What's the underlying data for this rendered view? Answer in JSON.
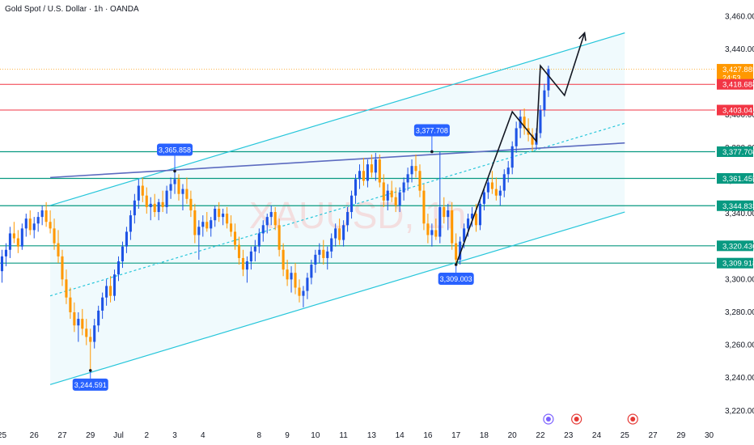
{
  "chart_data": {
    "type": "candlestick",
    "title": "Gold Spot / U.S. Dollar · 1h · OANDA",
    "watermark": "XAUUSD, 1h",
    "ylim": [
      3215,
      3470
    ],
    "y_ticks": [
      "3,460.000",
      "3,440.000",
      "3,420.000",
      "3,400.000",
      "3,380.000",
      "3,360.000",
      "3,340.000",
      "3,320.000",
      "3,300.000",
      "3,280.000",
      "3,260.000",
      "3,240.000",
      "3,220.000"
    ],
    "y_tick_values": [
      3460,
      3440,
      3420,
      3400,
      3380,
      3360,
      3340,
      3320,
      3300,
      3280,
      3260,
      3240,
      3220
    ],
    "x_ticks": [
      "25",
      "26",
      "27",
      "29",
      "Jul",
      "2",
      "3",
      "4",
      "8",
      "9",
      "10",
      "11",
      "13",
      "14",
      "16",
      "17",
      "18",
      "20",
      "22",
      "23",
      "24",
      "25",
      "27",
      "29",
      "30"
    ],
    "x_tick_index": [
      0,
      8,
      15,
      22,
      29,
      36,
      43,
      50,
      64,
      71,
      78,
      85,
      92,
      99,
      106,
      113,
      120,
      127,
      134,
      141,
      148,
      155,
      162,
      169,
      176
    ],
    "total_slots": 178,
    "countdown": "24:53",
    "horizontal_levels": [
      {
        "value": 3427.885,
        "label": "3,427.885",
        "color": "#ff9800",
        "kind": "current"
      },
      {
        "value": 3418.688,
        "label": "3,418.688",
        "color": "#f23645"
      },
      {
        "value": 3403.041,
        "label": "3,403.041",
        "color": "#f23645"
      },
      {
        "value": 3377.708,
        "label": "3,377.708",
        "color": "#089981"
      },
      {
        "value": 3361.455,
        "label": "3,361.455",
        "color": "#089981"
      },
      {
        "value": 3344.833,
        "label": "3,344.833",
        "color": "#089981"
      },
      {
        "value": 3320.436,
        "label": "3,320.436",
        "color": "#089981"
      },
      {
        "value": 3309.918,
        "label": "3,309.918",
        "color": "#089981"
      }
    ],
    "callouts": [
      {
        "label": "3,365.858",
        "slot": 43,
        "value": 3365.858,
        "position": "above"
      },
      {
        "label": "3,377.708",
        "slot": 107,
        "value": 3377.708,
        "position": "above"
      },
      {
        "label": "3,309.003",
        "slot": 113,
        "value": 3309.003,
        "position": "below"
      },
      {
        "label": "3,244.591",
        "slot": 22,
        "value": 3244.591,
        "position": "below"
      }
    ],
    "channel": {
      "upper": [
        [
          12,
          3345
        ],
        [
          155,
          3450
        ]
      ],
      "lower": [
        [
          12,
          3236
        ],
        [
          155,
          3341
        ]
      ],
      "mid": [
        [
          12,
          3290
        ],
        [
          155,
          3395
        ]
      ]
    },
    "trendline": [
      [
        12,
        3362
      ],
      [
        155,
        3383
      ]
    ],
    "projection": [
      [
        113,
        3309
      ],
      [
        127,
        3402
      ],
      [
        133,
        3384
      ],
      [
        134,
        3430
      ],
      [
        140,
        3412
      ],
      [
        145,
        3450
      ]
    ],
    "candles": [
      {
        "o": 3305,
        "h": 3318,
        "l": 3298,
        "c": 3314
      },
      {
        "o": 3314,
        "h": 3322,
        "l": 3308,
        "c": 3318
      },
      {
        "o": 3318,
        "h": 3332,
        "l": 3313,
        "c": 3328
      },
      {
        "o": 3328,
        "h": 3335,
        "l": 3322,
        "c": 3325
      },
      {
        "o": 3325,
        "h": 3330,
        "l": 3316,
        "c": 3320
      },
      {
        "o": 3320,
        "h": 3334,
        "l": 3318,
        "c": 3331
      },
      {
        "o": 3331,
        "h": 3340,
        "l": 3326,
        "c": 3337
      },
      {
        "o": 3337,
        "h": 3342,
        "l": 3327,
        "c": 3330
      },
      {
        "o": 3330,
        "h": 3338,
        "l": 3325,
        "c": 3334
      },
      {
        "o": 3334,
        "h": 3341,
        "l": 3329,
        "c": 3338
      },
      {
        "o": 3338,
        "h": 3345,
        "l": 3333,
        "c": 3342
      },
      {
        "o": 3342,
        "h": 3347,
        "l": 3332,
        "c": 3335
      },
      {
        "o": 3335,
        "h": 3342,
        "l": 3328,
        "c": 3331
      },
      {
        "o": 3331,
        "h": 3337,
        "l": 3318,
        "c": 3322
      },
      {
        "o": 3322,
        "h": 3330,
        "l": 3310,
        "c": 3314
      },
      {
        "o": 3314,
        "h": 3318,
        "l": 3296,
        "c": 3300
      },
      {
        "o": 3300,
        "h": 3306,
        "l": 3285,
        "c": 3289
      },
      {
        "o": 3289,
        "h": 3295,
        "l": 3276,
        "c": 3280
      },
      {
        "o": 3280,
        "h": 3286,
        "l": 3268,
        "c": 3272
      },
      {
        "o": 3272,
        "h": 3280,
        "l": 3262,
        "c": 3276
      },
      {
        "o": 3276,
        "h": 3282,
        "l": 3266,
        "c": 3270
      },
      {
        "o": 3270,
        "h": 3276,
        "l": 3260,
        "c": 3265
      },
      {
        "o": 3265,
        "h": 3270,
        "l": 3244.6,
        "c": 3262
      },
      {
        "o": 3262,
        "h": 3276,
        "l": 3258,
        "c": 3272
      },
      {
        "o": 3272,
        "h": 3284,
        "l": 3268,
        "c": 3281
      },
      {
        "o": 3281,
        "h": 3292,
        "l": 3276,
        "c": 3289
      },
      {
        "o": 3289,
        "h": 3300,
        "l": 3284,
        "c": 3296
      },
      {
        "o": 3296,
        "h": 3302,
        "l": 3286,
        "c": 3290
      },
      {
        "o": 3290,
        "h": 3306,
        "l": 3287,
        "c": 3303
      },
      {
        "o": 3303,
        "h": 3314,
        "l": 3299,
        "c": 3311
      },
      {
        "o": 3311,
        "h": 3323,
        "l": 3307,
        "c": 3320
      },
      {
        "o": 3320,
        "h": 3332,
        "l": 3316,
        "c": 3329
      },
      {
        "o": 3329,
        "h": 3342,
        "l": 3324,
        "c": 3339
      },
      {
        "o": 3339,
        "h": 3352,
        "l": 3334,
        "c": 3348
      },
      {
        "o": 3348,
        "h": 3361,
        "l": 3343,
        "c": 3357
      },
      {
        "o": 3357,
        "h": 3362,
        "l": 3347,
        "c": 3351
      },
      {
        "o": 3351,
        "h": 3356,
        "l": 3340,
        "c": 3344
      },
      {
        "o": 3344,
        "h": 3350,
        "l": 3336,
        "c": 3346
      },
      {
        "o": 3346,
        "h": 3352,
        "l": 3338,
        "c": 3341
      },
      {
        "o": 3341,
        "h": 3349,
        "l": 3336,
        "c": 3347
      },
      {
        "o": 3347,
        "h": 3354,
        "l": 3341,
        "c": 3344
      },
      {
        "o": 3344,
        "h": 3357,
        "l": 3340,
        "c": 3354
      },
      {
        "o": 3354,
        "h": 3362,
        "l": 3349,
        "c": 3358
      },
      {
        "o": 3358,
        "h": 3365.9,
        "l": 3352,
        "c": 3361
      },
      {
        "o": 3361,
        "h": 3364,
        "l": 3348,
        "c": 3352
      },
      {
        "o": 3352,
        "h": 3358,
        "l": 3342,
        "c": 3355
      },
      {
        "o": 3355,
        "h": 3362,
        "l": 3346,
        "c": 3349
      },
      {
        "o": 3349,
        "h": 3354,
        "l": 3338,
        "c": 3342
      },
      {
        "o": 3342,
        "h": 3346,
        "l": 3322,
        "c": 3327
      },
      {
        "o": 3327,
        "h": 3336,
        "l": 3312,
        "c": 3332
      },
      {
        "o": 3332,
        "h": 3339,
        "l": 3326,
        "c": 3335
      },
      {
        "o": 3335,
        "h": 3341,
        "l": 3329,
        "c": 3331
      },
      {
        "o": 3331,
        "h": 3338,
        "l": 3326,
        "c": 3336
      },
      {
        "o": 3336,
        "h": 3345,
        "l": 3332,
        "c": 3343
      },
      {
        "o": 3343,
        "h": 3347,
        "l": 3335,
        "c": 3338
      },
      {
        "o": 3338,
        "h": 3343,
        "l": 3333,
        "c": 3340
      },
      {
        "o": 3340,
        "h": 3344,
        "l": 3331,
        "c": 3334
      },
      {
        "o": 3334,
        "h": 3339,
        "l": 3326,
        "c": 3329
      },
      {
        "o": 3329,
        "h": 3334,
        "l": 3318,
        "c": 3321
      },
      {
        "o": 3321,
        "h": 3326,
        "l": 3309,
        "c": 3313
      },
      {
        "o": 3313,
        "h": 3318,
        "l": 3302,
        "c": 3306
      },
      {
        "o": 3306,
        "h": 3314,
        "l": 3298,
        "c": 3311
      },
      {
        "o": 3311,
        "h": 3320,
        "l": 3306,
        "c": 3317
      },
      {
        "o": 3317,
        "h": 3324,
        "l": 3311,
        "c": 3320
      },
      {
        "o": 3320,
        "h": 3331,
        "l": 3316,
        "c": 3328
      },
      {
        "o": 3328,
        "h": 3336,
        "l": 3323,
        "c": 3333
      },
      {
        "o": 3333,
        "h": 3340,
        "l": 3328,
        "c": 3338
      },
      {
        "o": 3338,
        "h": 3345,
        "l": 3333,
        "c": 3341
      },
      {
        "o": 3341,
        "h": 3344,
        "l": 3330,
        "c": 3333
      },
      {
        "o": 3333,
        "h": 3337,
        "l": 3314,
        "c": 3318
      },
      {
        "o": 3318,
        "h": 3322,
        "l": 3302,
        "c": 3306
      },
      {
        "o": 3306,
        "h": 3312,
        "l": 3296,
        "c": 3300
      },
      {
        "o": 3300,
        "h": 3308,
        "l": 3292,
        "c": 3304
      },
      {
        "o": 3304,
        "h": 3310,
        "l": 3291,
        "c": 3295
      },
      {
        "o": 3295,
        "h": 3300,
        "l": 3286,
        "c": 3290
      },
      {
        "o": 3290,
        "h": 3296,
        "l": 3283,
        "c": 3293
      },
      {
        "o": 3293,
        "h": 3304,
        "l": 3288,
        "c": 3301
      },
      {
        "o": 3301,
        "h": 3312,
        "l": 3297,
        "c": 3309
      },
      {
        "o": 3309,
        "h": 3318,
        "l": 3304,
        "c": 3315
      },
      {
        "o": 3315,
        "h": 3322,
        "l": 3310,
        "c": 3318
      },
      {
        "o": 3318,
        "h": 3324,
        "l": 3309,
        "c": 3313
      },
      {
        "o": 3313,
        "h": 3320,
        "l": 3306,
        "c": 3317
      },
      {
        "o": 3317,
        "h": 3328,
        "l": 3313,
        "c": 3325
      },
      {
        "o": 3325,
        "h": 3334,
        "l": 3320,
        "c": 3331
      },
      {
        "o": 3331,
        "h": 3337,
        "l": 3321,
        "c": 3324
      },
      {
        "o": 3324,
        "h": 3336,
        "l": 3320,
        "c": 3333
      },
      {
        "o": 3333,
        "h": 3344,
        "l": 3329,
        "c": 3341
      },
      {
        "o": 3341,
        "h": 3354,
        "l": 3337,
        "c": 3351
      },
      {
        "o": 3351,
        "h": 3364,
        "l": 3346,
        "c": 3361
      },
      {
        "o": 3361,
        "h": 3370,
        "l": 3355,
        "c": 3366
      },
      {
        "o": 3366,
        "h": 3374,
        "l": 3357,
        "c": 3360
      },
      {
        "o": 3360,
        "h": 3373,
        "l": 3356,
        "c": 3370
      },
      {
        "o": 3370,
        "h": 3376,
        "l": 3362,
        "c": 3365
      },
      {
        "o": 3365,
        "h": 3377,
        "l": 3360,
        "c": 3373
      },
      {
        "o": 3373,
        "h": 3376,
        "l": 3356,
        "c": 3359
      },
      {
        "o": 3359,
        "h": 3364,
        "l": 3344,
        "c": 3348
      },
      {
        "o": 3348,
        "h": 3358,
        "l": 3342,
        "c": 3354
      },
      {
        "o": 3354,
        "h": 3360,
        "l": 3347,
        "c": 3350
      },
      {
        "o": 3350,
        "h": 3356,
        "l": 3341,
        "c": 3345
      },
      {
        "o": 3345,
        "h": 3356,
        "l": 3341,
        "c": 3353
      },
      {
        "o": 3353,
        "h": 3362,
        "l": 3348,
        "c": 3359
      },
      {
        "o": 3359,
        "h": 3368,
        "l": 3354,
        "c": 3364
      },
      {
        "o": 3364,
        "h": 3373,
        "l": 3359,
        "c": 3369
      },
      {
        "o": 3369,
        "h": 3376,
        "l": 3362,
        "c": 3366
      },
      {
        "o": 3366,
        "h": 3370,
        "l": 3350,
        "c": 3354
      },
      {
        "o": 3354,
        "h": 3358,
        "l": 3330,
        "c": 3334
      },
      {
        "o": 3334,
        "h": 3340,
        "l": 3322,
        "c": 3327
      },
      {
        "o": 3327,
        "h": 3334,
        "l": 3320,
        "c": 3330
      },
      {
        "o": 3330,
        "h": 3337,
        "l": 3324,
        "c": 3326
      },
      {
        "o": 3326,
        "h": 3377.7,
        "l": 3322,
        "c": 3344
      },
      {
        "o": 3344,
        "h": 3350,
        "l": 3334,
        "c": 3338
      },
      {
        "o": 3338,
        "h": 3346,
        "l": 3330,
        "c": 3342
      },
      {
        "o": 3342,
        "h": 3347,
        "l": 3318,
        "c": 3322
      },
      {
        "o": 3322,
        "h": 3328,
        "l": 3309,
        "c": 3312
      },
      {
        "o": 3312,
        "h": 3326,
        "l": 3309,
        "c": 3323
      },
      {
        "o": 3323,
        "h": 3334,
        "l": 3319,
        "c": 3331
      },
      {
        "o": 3331,
        "h": 3340,
        "l": 3326,
        "c": 3337
      },
      {
        "o": 3337,
        "h": 3344,
        "l": 3332,
        "c": 3340
      },
      {
        "o": 3340,
        "h": 3346,
        "l": 3329,
        "c": 3333
      },
      {
        "o": 3333,
        "h": 3349,
        "l": 3330,
        "c": 3346
      },
      {
        "o": 3346,
        "h": 3356,
        "l": 3342,
        "c": 3353
      },
      {
        "o": 3353,
        "h": 3362,
        "l": 3349,
        "c": 3359
      },
      {
        "o": 3359,
        "h": 3366,
        "l": 3352,
        "c": 3355
      },
      {
        "o": 3355,
        "h": 3362,
        "l": 3348,
        "c": 3351
      },
      {
        "o": 3351,
        "h": 3357,
        "l": 3345,
        "c": 3354
      },
      {
        "o": 3354,
        "h": 3367,
        "l": 3350,
        "c": 3364
      },
      {
        "o": 3364,
        "h": 3372,
        "l": 3359,
        "c": 3368
      },
      {
        "o": 3368,
        "h": 3384,
        "l": 3364,
        "c": 3381
      },
      {
        "o": 3381,
        "h": 3396,
        "l": 3377,
        "c": 3392
      },
      {
        "o": 3392,
        "h": 3403,
        "l": 3386,
        "c": 3399
      },
      {
        "o": 3399,
        "h": 3404,
        "l": 3388,
        "c": 3392
      },
      {
        "o": 3392,
        "h": 3398,
        "l": 3384,
        "c": 3388
      },
      {
        "o": 3388,
        "h": 3392,
        "l": 3378,
        "c": 3382
      },
      {
        "o": 3382,
        "h": 3392,
        "l": 3379,
        "c": 3389
      },
      {
        "o": 3389,
        "h": 3406,
        "l": 3386,
        "c": 3403
      },
      {
        "o": 3403,
        "h": 3419,
        "l": 3399,
        "c": 3415
      },
      {
        "o": 3415,
        "h": 3430,
        "l": 3411,
        "c": 3428
      }
    ]
  }
}
